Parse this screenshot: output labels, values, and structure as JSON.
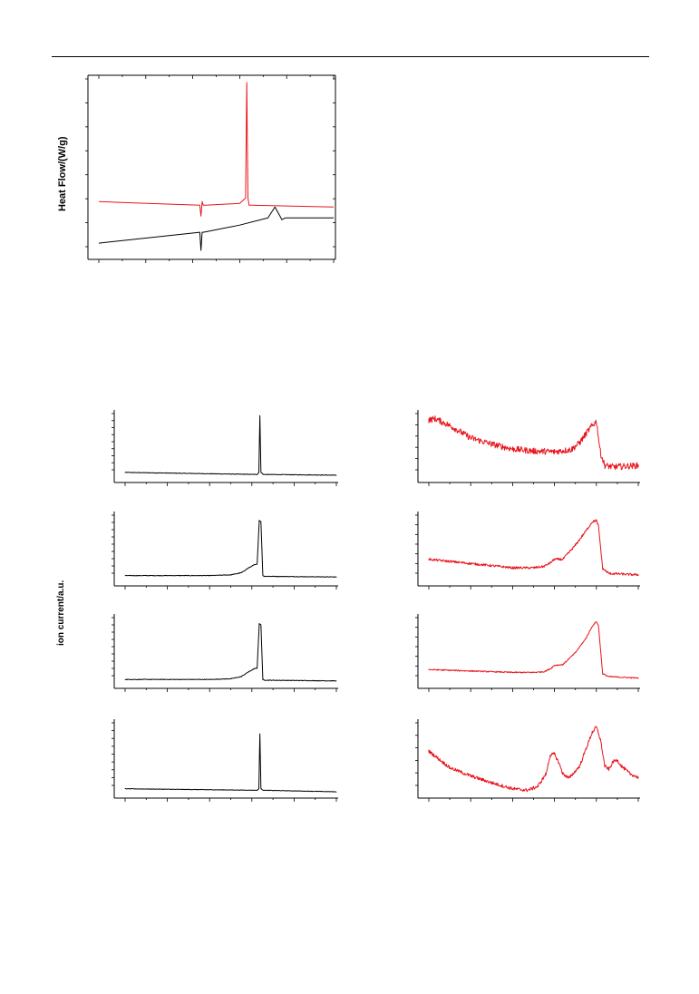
{
  "figure": {
    "heat_flow_ylabel": "Heat Flow/(W/g)",
    "ion_current_ylabel": "ion current/a.u."
  },
  "colors": {
    "black_trace": "#000000",
    "red_trace": "#e8141c",
    "axis": "#000000"
  },
  "chart_data": [
    {
      "type": "line",
      "id": "dsc",
      "title": "",
      "xlabel": "",
      "ylabel": "Heat Flow/(W/g)",
      "xlim": [
        0,
        100
      ],
      "ylim": [
        0,
        100
      ],
      "grid": false,
      "series": [
        {
          "color": "#e8141c",
          "x": [
            0,
            43.0,
            43.5,
            44.0,
            44.5,
            45.5,
            60.0,
            62.5,
            63.0,
            63.5,
            64.0,
            65.0,
            100
          ],
          "y": [
            31,
            29,
            23,
            31,
            29,
            29,
            30,
            33,
            97,
            33,
            29,
            29,
            28
          ]
        },
        {
          "color": "#000000",
          "x": [
            0,
            43.0,
            43.5,
            44.0,
            44.5,
            60,
            72,
            75,
            78,
            79.5,
            82,
            100
          ],
          "y": [
            8,
            14,
            4,
            14,
            14,
            18,
            22,
            28,
            21,
            22,
            22,
            22
          ]
        }
      ]
    },
    {
      "type": "line",
      "id": "ms-black-1",
      "title": "",
      "xlabel": "",
      "ylabel": "",
      "xlim": [
        0,
        100
      ],
      "ylim": [
        0,
        100
      ],
      "grid": false,
      "series": [
        {
          "color": "#000000",
          "x": [
            0,
            62.5,
            63.3,
            63.8,
            64.3,
            65.5,
            100
          ],
          "y": [
            12,
            9,
            12,
            94,
            12,
            9,
            8
          ]
        }
      ]
    },
    {
      "type": "line",
      "id": "ms-black-2",
      "title": "",
      "xlabel": "",
      "ylabel": "",
      "xlim": [
        0,
        100
      ],
      "ylim": [
        0,
        100
      ],
      "grid": false,
      "series": [
        {
          "color": "#000000",
          "x": [
            0,
            40,
            50,
            55,
            58,
            61,
            62.5,
            63.5,
            64.3,
            65.2,
            66.0,
            100
          ],
          "y": [
            12,
            12,
            13,
            16,
            22,
            27,
            28,
            90,
            88,
            12,
            11,
            10
          ]
        }
      ]
    },
    {
      "type": "line",
      "id": "ms-black-3",
      "title": "",
      "xlabel": "",
      "ylabel": "",
      "xlim": [
        0,
        100
      ],
      "ylim": [
        0,
        100
      ],
      "grid": false,
      "series": [
        {
          "color": "#000000",
          "x": [
            0,
            40,
            50,
            55,
            58,
            61,
            62.5,
            63.5,
            64.3,
            65.2,
            66.0,
            100
          ],
          "y": [
            10,
            10,
            11,
            14,
            20,
            25,
            26,
            89,
            87,
            10,
            9,
            8
          ]
        }
      ]
    },
    {
      "type": "line",
      "id": "ms-black-4",
      "title": "",
      "xlabel": "",
      "ylabel": "",
      "xlim": [
        0,
        100
      ],
      "ylim": [
        0,
        100
      ],
      "grid": false,
      "series": [
        {
          "color": "#000000",
          "x": [
            0,
            62.5,
            63.3,
            63.8,
            64.3,
            65.5,
            100
          ],
          "y": [
            10,
            8,
            10,
            83,
            10,
            8,
            6
          ]
        }
      ]
    },
    {
      "type": "line",
      "id": "ms-red-1",
      "title": "",
      "xlabel": "",
      "ylabel": "",
      "xlim": [
        0,
        100
      ],
      "ylim": [
        0,
        100
      ],
      "grid": false,
      "series": [
        {
          "color": "#e8141c",
          "x": [
            0,
            3,
            10,
            20,
            30,
            40,
            50,
            60,
            68,
            72,
            75,
            78,
            80,
            82,
            84,
            88,
            100
          ],
          "y": [
            88,
            90,
            80,
            62,
            53,
            46,
            43,
            42,
            45,
            55,
            68,
            80,
            86,
            40,
            22,
            20,
            22
          ]
        }
      ]
    },
    {
      "type": "line",
      "id": "ms-red-2",
      "title": "",
      "xlabel": "",
      "ylabel": "",
      "xlim": [
        0,
        100
      ],
      "ylim": [
        0,
        100
      ],
      "grid": false,
      "series": [
        {
          "color": "#e8141c",
          "x": [
            0,
            20,
            40,
            50,
            55,
            58,
            60,
            64,
            70,
            75,
            78,
            80,
            81,
            83,
            86,
            100
          ],
          "y": [
            35,
            29,
            23,
            23,
            25,
            30,
            35,
            35,
            55,
            75,
            88,
            90,
            82,
            22,
            15,
            13
          ]
        }
      ]
    },
    {
      "type": "line",
      "id": "ms-red-3",
      "title": "",
      "xlabel": "",
      "ylabel": "",
      "xlim": [
        0,
        100
      ],
      "ylim": [
        0,
        100
      ],
      "grid": false,
      "series": [
        {
          "color": "#e8141c",
          "x": [
            0,
            20,
            40,
            50,
            55,
            58,
            60,
            64,
            70,
            75,
            78,
            80,
            81,
            83,
            86,
            100
          ],
          "y": [
            24,
            22,
            20,
            20,
            21,
            25,
            30,
            31,
            48,
            68,
            85,
            92,
            86,
            18,
            14,
            12
          ]
        }
      ]
    },
    {
      "type": "line",
      "id": "ms-red-4",
      "title": "",
      "xlabel": "",
      "ylabel": "",
      "xlim": [
        0,
        100
      ],
      "ylim": [
        0,
        100
      ],
      "grid": false,
      "series": [
        {
          "color": "#e8141c",
          "x": [
            0,
            10,
            20,
            30,
            40,
            47,
            52,
            56,
            58,
            60,
            62,
            64,
            67,
            72,
            76,
            78,
            80,
            82,
            84,
            86,
            88,
            90,
            92,
            96,
            100
          ],
          "y": [
            60,
            38,
            27,
            18,
            10,
            8,
            13,
            30,
            55,
            56,
            45,
            30,
            24,
            40,
            70,
            85,
            92,
            75,
            40,
            36,
            46,
            48,
            40,
            30,
            25
          ]
        }
      ]
    }
  ]
}
